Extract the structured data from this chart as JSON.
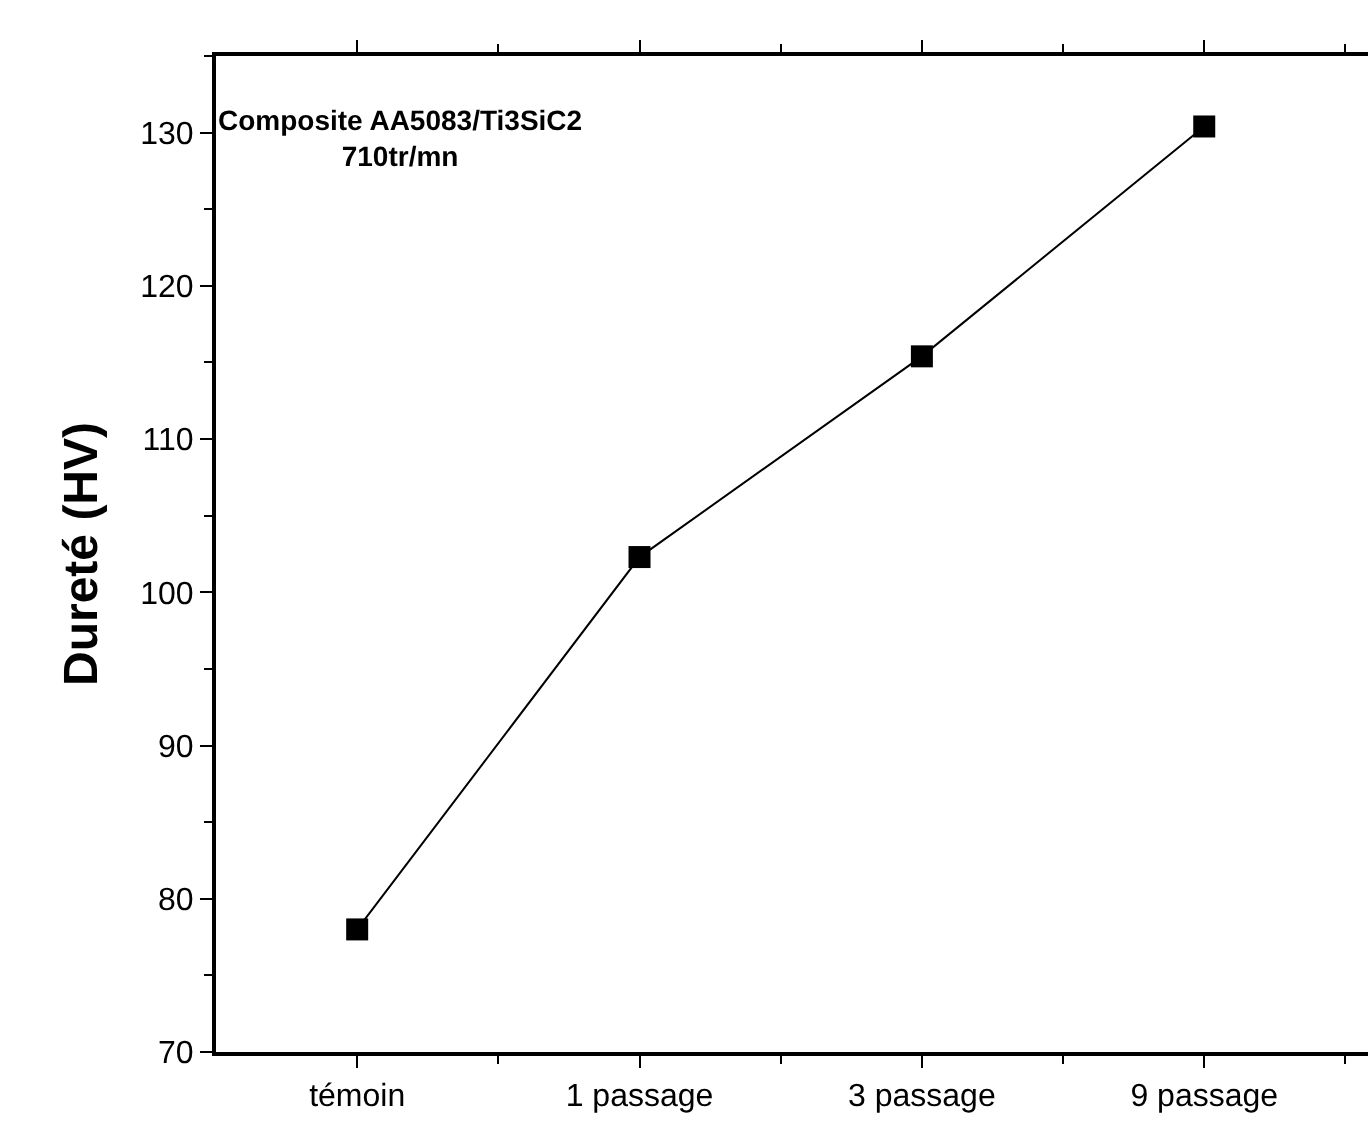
{
  "chart_data": {
    "type": "line",
    "ylabel": "Dureté (HV)",
    "annotations": [
      "Composite AA5083/Ti3SiC2\n710tr/mn"
    ],
    "categories": [
      "témoin",
      "1 passage",
      "3 passage",
      "9 passage"
    ],
    "series": [
      {
        "color": "#000000",
        "values": [
          78,
          102.3,
          115.4,
          130.4
        ]
      }
    ],
    "ylim": [
      70,
      135
    ],
    "yticks": [
      70,
      80,
      90,
      100,
      110,
      120,
      130
    ],
    "grid": false,
    "marker": "square",
    "line_style": "solid"
  }
}
